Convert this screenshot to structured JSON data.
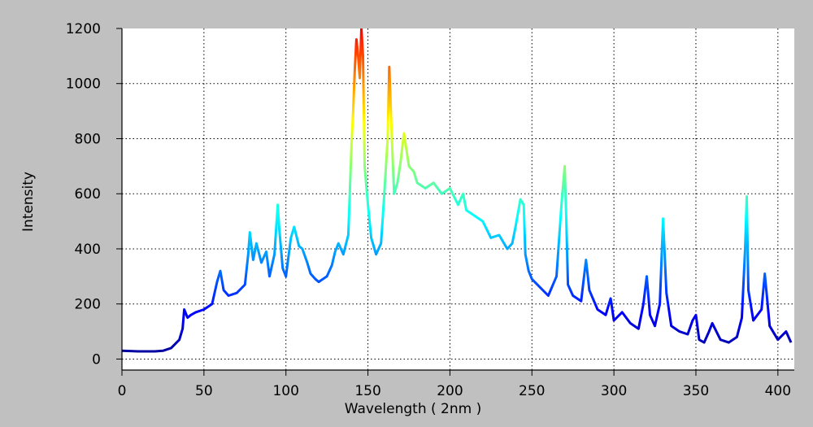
{
  "chart_data": {
    "type": "line",
    "title": "",
    "xlabel": "Wavelength ( 2nm )",
    "ylabel": "Intensity",
    "xlim": [
      0,
      410
    ],
    "ylim": [
      -40,
      1200
    ],
    "x_ticks": [
      0,
      50,
      100,
      150,
      200,
      250,
      300,
      350,
      400
    ],
    "y_ticks": [
      0,
      200,
      400,
      600,
      800,
      1000,
      1200
    ],
    "grid": true,
    "legend": "none",
    "colormap": [
      "#00008f",
      "#0000ff",
      "#007fff",
      "#00ffff",
      "#7fff7f",
      "#ffff00",
      "#ff7f00",
      "#ff0000"
    ],
    "series": [
      {
        "values_estimated": true,
        "x": [
          0,
          10,
          20,
          25,
          30,
          35,
          37,
          38,
          40,
          42,
          45,
          50,
          55,
          58,
          60,
          62,
          65,
          70,
          75,
          77,
          78,
          80,
          82,
          85,
          88,
          90,
          93,
          95,
          96,
          98,
          100,
          103,
          105,
          108,
          110,
          113,
          115,
          118,
          120,
          125,
          128,
          130,
          132,
          135,
          138,
          140,
          141,
          142,
          143,
          144,
          145,
          146,
          147,
          148,
          150,
          152,
          155,
          158,
          160,
          162,
          163,
          164,
          165,
          166,
          168,
          170,
          172,
          175,
          178,
          180,
          185,
          190,
          195,
          200,
          205,
          208,
          210,
          215,
          220,
          225,
          230,
          235,
          238,
          240,
          243,
          245,
          246,
          248,
          250,
          255,
          260,
          265,
          268,
          270,
          271,
          272,
          275,
          280,
          283,
          285,
          290,
          295,
          298,
          300,
          305,
          310,
          315,
          318,
          320,
          322,
          325,
          328,
          330,
          332,
          335,
          340,
          345,
          348,
          350,
          352,
          355,
          358,
          360,
          365,
          370,
          375,
          378,
          380,
          381,
          382,
          385,
          390,
          392,
          395,
          400,
          405,
          408
        ],
        "values": [
          30,
          28,
          28,
          30,
          40,
          70,
          110,
          180,
          150,
          160,
          170,
          180,
          200,
          280,
          320,
          250,
          230,
          240,
          270,
          380,
          460,
          360,
          420,
          350,
          390,
          300,
          380,
          560,
          470,
          330,
          300,
          440,
          480,
          410,
          400,
          350,
          310,
          290,
          280,
          300,
          340,
          390,
          420,
          380,
          450,
          780,
          900,
          1050,
          1160,
          1100,
          1020,
          1200,
          1100,
          700,
          560,
          440,
          380,
          420,
          600,
          800,
          1060,
          900,
          740,
          600,
          640,
          720,
          820,
          700,
          680,
          640,
          620,
          640,
          600,
          620,
          560,
          600,
          540,
          520,
          500,
          440,
          450,
          400,
          420,
          480,
          580,
          560,
          380,
          320,
          290,
          260,
          230,
          300,
          560,
          700,
          500,
          270,
          230,
          210,
          360,
          250,
          180,
          160,
          220,
          140,
          170,
          130,
          110,
          200,
          300,
          160,
          120,
          200,
          510,
          240,
          120,
          100,
          90,
          140,
          160,
          70,
          60,
          100,
          130,
          70,
          60,
          80,
          150,
          400,
          590,
          250,
          140,
          180,
          310,
          120,
          70,
          100,
          60
        ]
      }
    ]
  }
}
